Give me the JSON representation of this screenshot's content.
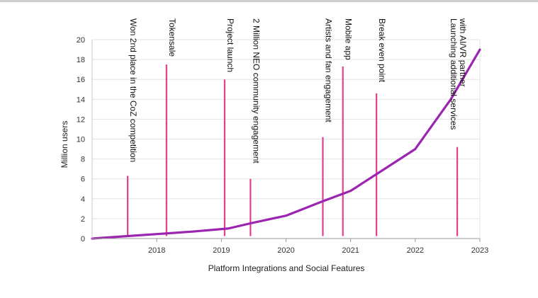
{
  "chart_data": {
    "type": "line",
    "title": "",
    "xlabel": "Platform Integrations and Social Features",
    "ylabel": "Million users",
    "xlim": [
      2017.0,
      2023.0
    ],
    "ylim": [
      0,
      20
    ],
    "x_ticks": [
      2018,
      2019,
      2020,
      2021,
      2022,
      2023
    ],
    "y_ticks": [
      0,
      2,
      4,
      6,
      8,
      10,
      12,
      14,
      16,
      18,
      20
    ],
    "grid": true,
    "legend": "none",
    "series": [
      {
        "color": "#9b24b0",
        "x": [
          2017.0,
          2017.55,
          2018.0,
          2018.55,
          2019.1,
          2019.5,
          2020.0,
          2020.55,
          2021.0,
          2021.5,
          2022.0,
          2022.55,
          2023.0
        ],
        "y": [
          0.0,
          0.25,
          0.45,
          0.7,
          1.0,
          1.6,
          2.3,
          3.7,
          4.8,
          6.9,
          9.0,
          14.0,
          19.0
        ]
      }
    ],
    "milestones": [
      {
        "x": 2017.55,
        "top": 6.3,
        "label": "Won 2nd place in the CoZ competition"
      },
      {
        "x": 2018.15,
        "top": 17.5,
        "label": "Tokensale"
      },
      {
        "x": 2019.05,
        "top": 16.0,
        "label": "Project launch"
      },
      {
        "x": 2019.45,
        "top": 6.0,
        "label": "2 Million NEO community engagement"
      },
      {
        "x": 2020.57,
        "top": 10.2,
        "label": "Artists and fan engagement"
      },
      {
        "x": 2020.88,
        "top": 17.3,
        "label": "Mobile app"
      },
      {
        "x": 2021.4,
        "top": 14.6,
        "label": "Break even point"
      },
      {
        "x": 2022.65,
        "top": 9.2,
        "label": "Launching additional services",
        "label2": "with AI/VR partner"
      }
    ],
    "milestone_color": "#e0418f"
  }
}
